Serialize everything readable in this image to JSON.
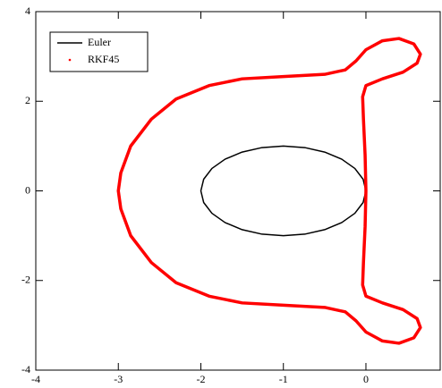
{
  "chart_data": {
    "type": "line",
    "xlim": [
      -4,
      0.9
    ],
    "ylim": [
      -4,
      4
    ],
    "xticks": [
      -4,
      -3,
      -2,
      -1,
      0
    ],
    "yticks": [
      -4,
      -2,
      0,
      2,
      4
    ],
    "legend": "top-left",
    "series": [
      {
        "name": "Euler",
        "color": "#000000",
        "x": [
          0,
          -0.034,
          -0.134,
          -0.293,
          -0.5,
          -0.741,
          -1,
          -1.259,
          -1.5,
          -1.707,
          -1.866,
          -1.966,
          -2,
          -1.966,
          -1.866,
          -1.707,
          -1.5,
          -1.259,
          -1,
          -0.741,
          -0.5,
          -0.293,
          -0.134,
          -0.034,
          0
        ],
        "y": [
          0,
          0.259,
          0.5,
          0.707,
          0.866,
          0.966,
          1,
          0.966,
          0.866,
          0.707,
          0.5,
          0.259,
          0,
          -0.259,
          -0.5,
          -0.707,
          -0.866,
          -0.966,
          -1,
          -0.966,
          -0.866,
          -0.707,
          -0.5,
          -0.259,
          0
        ]
      },
      {
        "name": "RKF45",
        "color": "#ff0000",
        "x": [
          0,
          -0.01,
          -0.03,
          -0.04,
          0,
          0.2,
          0.45,
          0.62,
          0.66,
          0.58,
          0.4,
          0.2,
          0,
          -0.12,
          -0.25,
          -0.5,
          -1,
          -1.5,
          -1.9,
          -2.3,
          -2.6,
          -2.85,
          -2.97,
          -3,
          -2.97,
          -2.85,
          -2.6,
          -2.3,
          -1.9,
          -1.5,
          -1,
          -0.5,
          -0.25,
          -0.12,
          0,
          0.2,
          0.4,
          0.58,
          0.66,
          0.62,
          0.45,
          0.2,
          0,
          -0.04,
          -0.03,
          -0.01,
          0
        ],
        "y": [
          0,
          -0.8,
          -1.6,
          -2.1,
          -2.35,
          -2.5,
          -2.65,
          -2.85,
          -3.05,
          -3.28,
          -3.4,
          -3.35,
          -3.15,
          -2.9,
          -2.7,
          -2.6,
          -2.55,
          -2.5,
          -2.35,
          -2.05,
          -1.6,
          -1,
          -0.4,
          0,
          0.4,
          1,
          1.6,
          2.05,
          2.35,
          2.5,
          2.55,
          2.6,
          2.7,
          2.9,
          3.15,
          3.35,
          3.4,
          3.28,
          3.05,
          2.85,
          2.65,
          2.5,
          2.35,
          2.1,
          1.6,
          0.8,
          0
        ]
      }
    ]
  }
}
